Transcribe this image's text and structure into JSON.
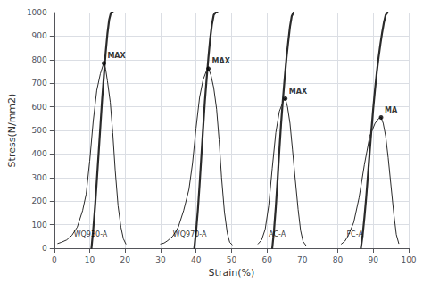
{
  "chart_data": {
    "type": "line",
    "xlabel": "Strain(%)",
    "ylabel": "Stress(N/mm2)",
    "xlim": [
      0,
      100
    ],
    "ylim": [
      0,
      1000
    ],
    "xticks": [
      0,
      10,
      20,
      30,
      40,
      50,
      60,
      70,
      80,
      90,
      100
    ],
    "yticks": [
      0,
      100,
      200,
      300,
      400,
      500,
      600,
      700,
      800,
      900,
      1000
    ],
    "grid": true,
    "series": [
      {
        "type": "line",
        "color": "#2a2a2a",
        "line_style": "thin",
        "x": [
          1.0,
          2.0,
          3.5,
          5.0,
          6.5,
          8.0,
          9.0,
          10.0,
          11.0,
          12.0,
          13.0,
          13.8,
          14.0
        ],
        "values": [
          20,
          25,
          35,
          55,
          90,
          160,
          230,
          370,
          540,
          670,
          740,
          778,
          785
        ]
      },
      {
        "type": "line",
        "color": "#2a2a2a",
        "line_style": "thick",
        "x": [
          10.5,
          11.0,
          11.5,
          12.0,
          12.5,
          13.0,
          13.5,
          14.0,
          14.5,
          15.0,
          15.5,
          16.0,
          16.5
        ],
        "values": [
          0,
          80,
          175,
          285,
          400,
          515,
          630,
          730,
          830,
          910,
          970,
          1000,
          1000
        ]
      },
      {
        "type": "line",
        "color": "#2a2a2a",
        "line_style": "thin",
        "x": [
          14.0,
          14.5,
          15.0,
          15.8,
          16.5,
          17.2,
          18.0,
          18.8,
          19.5,
          20.2
        ],
        "values": [
          785,
          760,
          710,
          620,
          490,
          330,
          180,
          90,
          40,
          18
        ]
      },
      {
        "type": "line",
        "color": "#2a2a2a",
        "line_style": "thin",
        "x": [
          30.0,
          31.0,
          32.0,
          33.5,
          35.0,
          36.5,
          38.0,
          39.0,
          40.0,
          41.0,
          42.0,
          43.0,
          43.5
        ],
        "values": [
          18,
          22,
          32,
          52,
          90,
          160,
          250,
          360,
          510,
          640,
          715,
          755,
          762
        ]
      },
      {
        "type": "line",
        "color": "#2a2a2a",
        "line_style": "thick",
        "x": [
          39.5,
          40.0,
          40.5,
          41.0,
          41.5,
          42.0,
          42.5,
          43.0,
          43.5,
          44.0,
          44.5,
          45.0,
          45.5,
          46.0
        ],
        "values": [
          0,
          70,
          160,
          270,
          390,
          510,
          625,
          720,
          810,
          890,
          950,
          990,
          1000,
          1000
        ]
      },
      {
        "type": "line",
        "color": "#2a2a2a",
        "line_style": "thin",
        "x": [
          43.5,
          44.2,
          45.0,
          45.8,
          46.5,
          47.2,
          48.0,
          48.8,
          49.5,
          50.2
        ],
        "values": [
          762,
          735,
          680,
          590,
          460,
          300,
          155,
          65,
          25,
          15
        ]
      },
      {
        "type": "line",
        "color": "#2a2a2a",
        "line_style": "thin",
        "x": [
          57.5,
          58.5,
          59.5,
          60.5,
          61.5,
          62.5,
          63.5,
          64.5,
          65.0,
          65.2
        ],
        "values": [
          18,
          35,
          80,
          180,
          340,
          490,
          580,
          620,
          633,
          635
        ]
      },
      {
        "type": "line",
        "color": "#2a2a2a",
        "line_style": "thick",
        "x": [
          61.5,
          62.0,
          62.5,
          63.0,
          63.5,
          64.0,
          64.5,
          65.0,
          65.5,
          66.0,
          66.5,
          67.0,
          67.5
        ],
        "values": [
          0,
          75,
          175,
          290,
          415,
          530,
          630,
          720,
          805,
          875,
          940,
          985,
          1000
        ]
      },
      {
        "type": "line",
        "color": "#2a2a2a",
        "line_style": "thin",
        "x": [
          65.2,
          65.8,
          66.5,
          67.2,
          68.0,
          68.8,
          69.5,
          70.2,
          71.0
        ],
        "values": [
          635,
          600,
          530,
          420,
          290,
          165,
          75,
          28,
          12
        ]
      },
      {
        "type": "line",
        "color": "#2a2a2a",
        "line_style": "thin",
        "x": [
          81.0,
          82.0,
          83.0,
          84.5,
          86.0,
          87.5,
          89.0,
          90.5,
          91.5,
          92.0,
          92.2
        ],
        "values": [
          18,
          30,
          55,
          110,
          215,
          355,
          475,
          530,
          550,
          554,
          555
        ]
      },
      {
        "type": "line",
        "color": "#2a2a2a",
        "line_style": "thick",
        "x": [
          86.5,
          87.0,
          87.5,
          88.0,
          88.5,
          89.0,
          89.5,
          90.0,
          90.5,
          91.0,
          91.5,
          92.0,
          92.5,
          93.0,
          93.5,
          94.0
        ],
        "values": [
          0,
          55,
          130,
          215,
          310,
          410,
          505,
          595,
          675,
          748,
          810,
          865,
          915,
          958,
          990,
          1000
        ]
      },
      {
        "type": "line",
        "color": "#2a2a2a",
        "line_style": "thin",
        "x": [
          92.2,
          92.8,
          93.5,
          94.2,
          95.0,
          95.8,
          96.5,
          97.2
        ],
        "values": [
          555,
          530,
          475,
          385,
          265,
          145,
          58,
          20
        ]
      },
      {
        "type": "scatter",
        "color": "#000000",
        "marker": "circle",
        "x": [
          14.0,
          43.5,
          65.2,
          92.2
        ],
        "values": [
          785,
          762,
          635,
          555
        ]
      }
    ],
    "annotations": [
      {
        "text": "MAX",
        "x": 14.0,
        "y": 785,
        "kind": "max"
      },
      {
        "text": "WQ930-A",
        "x": 5.5,
        "y": 45,
        "kind": "name"
      },
      {
        "text": "MAX",
        "x": 43.5,
        "y": 762,
        "kind": "max"
      },
      {
        "text": "WQ970-A",
        "x": 33.5,
        "y": 45,
        "kind": "name"
      },
      {
        "text": "MAX",
        "x": 65.2,
        "y": 635,
        "kind": "max"
      },
      {
        "text": "AC-A",
        "x": 60.5,
        "y": 45,
        "kind": "name"
      },
      {
        "text": "MA",
        "x": 92.2,
        "y": 555,
        "kind": "max"
      },
      {
        "text": "FC-A",
        "x": 82.5,
        "y": 45,
        "kind": "name"
      }
    ]
  }
}
